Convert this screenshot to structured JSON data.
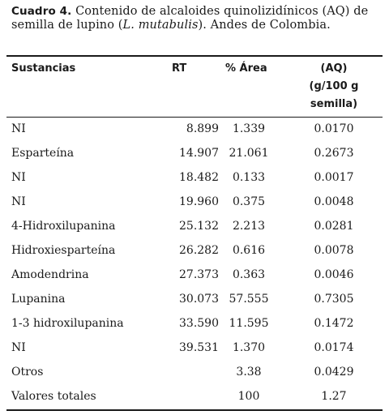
{
  "caption": {
    "label": "Cuadro 4.",
    "text_before": " Contenido de alcaloides quinolizidínicos (AQ) de semilla de lupino (",
    "species": "L. mutabulis",
    "text_after": "). Andes de Colombia."
  },
  "table": {
    "headers": {
      "name": "Sustancias",
      "rt": "RT",
      "area": "% Área",
      "aq_line1": "(AQ)",
      "aq_line2": "(g/100 g",
      "aq_line3": "semilla)"
    },
    "rows": [
      {
        "name": "NI",
        "rt": "8.899",
        "area": "1.339",
        "aq": "0.0170"
      },
      {
        "name": "Esparteína",
        "rt": "14.907",
        "area": "21.061",
        "aq": "0.2673"
      },
      {
        "name": "NI",
        "rt": "18.482",
        "area": "0.133",
        "aq": "0.0017"
      },
      {
        "name": "NI",
        "rt": "19.960",
        "area": "0.375",
        "aq": "0.0048"
      },
      {
        "name": "4-Hidroxilupanina",
        "rt": "25.132",
        "area": "2.213",
        "aq": "0.0281"
      },
      {
        "name": "Hidroxiesparteína",
        "rt": "26.282",
        "area": "0.616",
        "aq": "0.0078"
      },
      {
        "name": "Amodendrina",
        "rt": "27.373",
        "area": "0.363",
        "aq": "0.0046"
      },
      {
        "name": "Lupanina",
        "rt": "30.073",
        "area": "57.555",
        "aq": "0.7305"
      },
      {
        "name": "1-3 hidroxilupanina",
        "rt": "33.590",
        "area": "11.595",
        "aq": "0.1472"
      },
      {
        "name": "NI",
        "rt": "39.531",
        "area": "1.370",
        "aq": "0.0174"
      },
      {
        "name": "Otros",
        "rt": "",
        "area": "3.38",
        "aq": "0.0429"
      },
      {
        "name": "Valores totales",
        "rt": "",
        "area": "100",
        "aq": "1.27"
      }
    ]
  }
}
